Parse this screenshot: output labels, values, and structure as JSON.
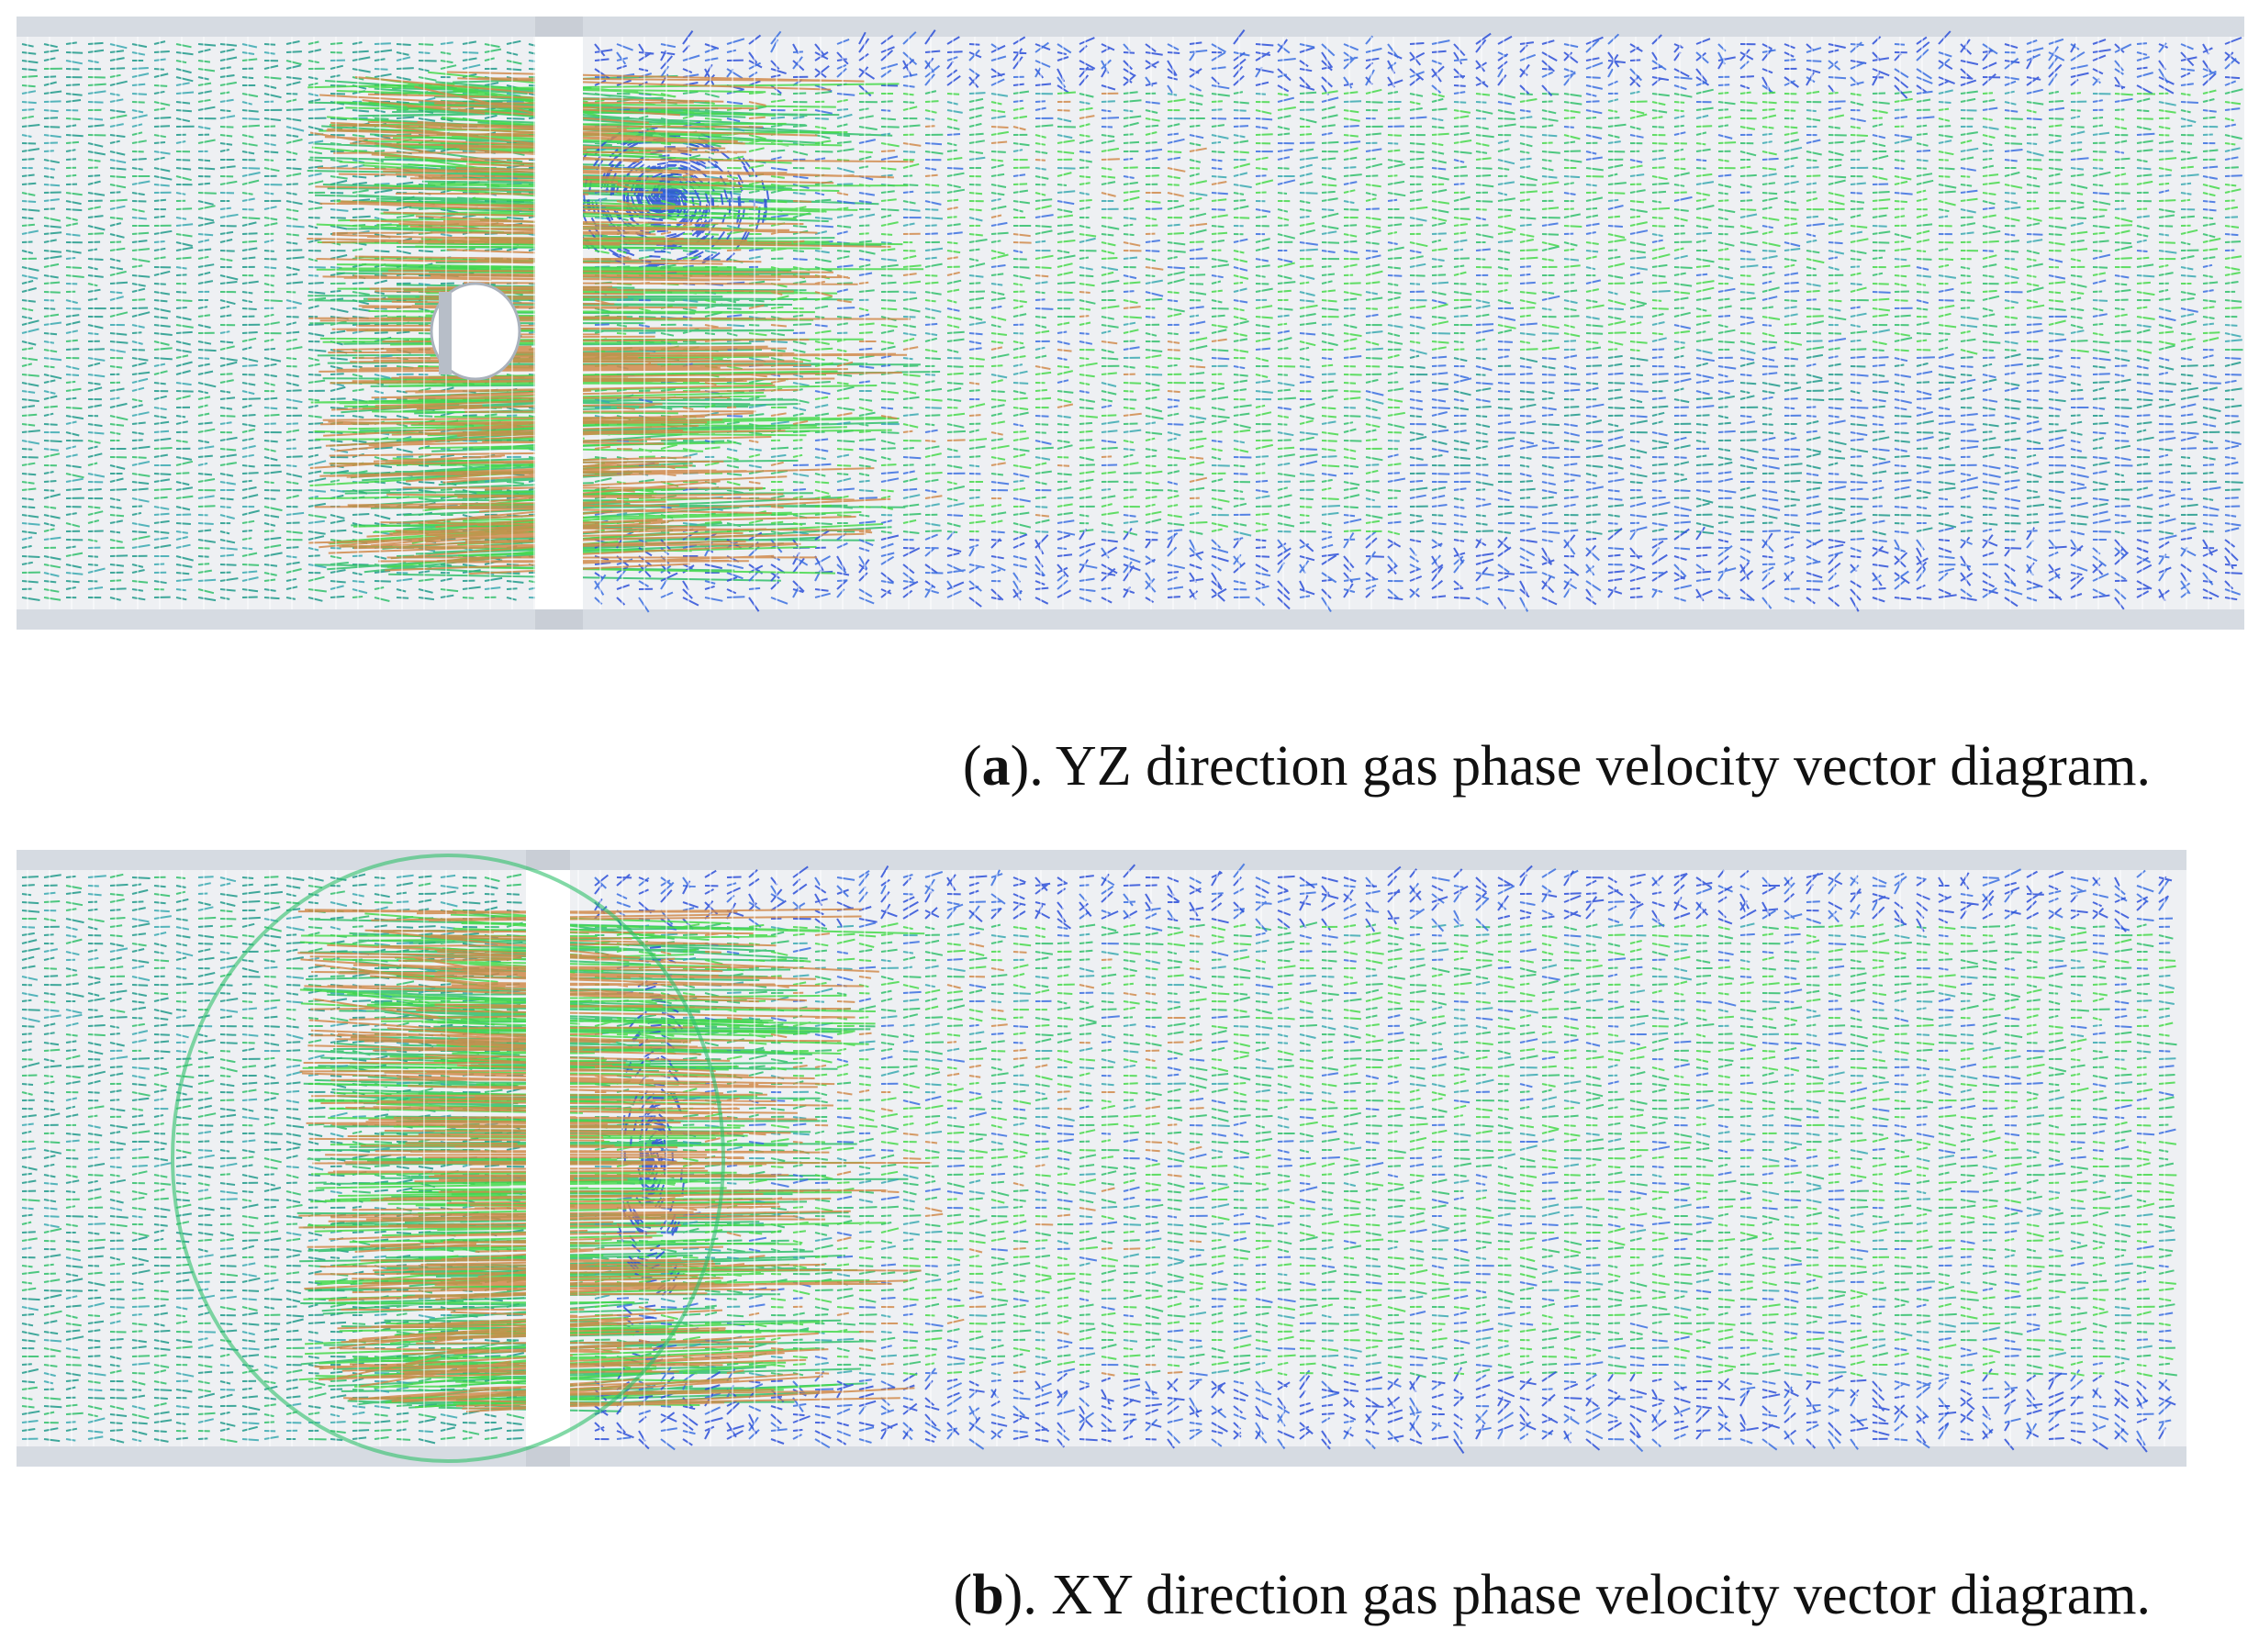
{
  "figures": [
    {
      "caption": [
        "(",
        "a",
        "). YZ direction gas phase velocity vector diagram."
      ]
    },
    {
      "caption": [
        "(",
        "b",
        "). XY direction gas phase velocity vector diagram."
      ]
    }
  ]
}
